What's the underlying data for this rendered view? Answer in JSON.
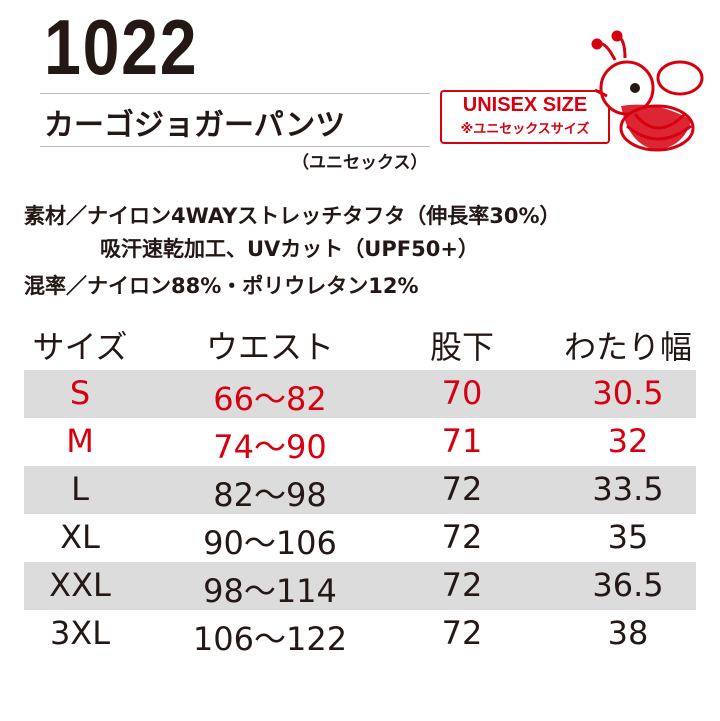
{
  "header": {
    "model": "1022",
    "product_name": "カーゴジョガーパンツ",
    "subtitle": "（ユニセックス）",
    "badge_title": "UNISEX SIZE",
    "badge_note": "※ユニセックスサイズ"
  },
  "material": [
    "素材／ナイロン4WAYストレッチタフタ（伸長率30%）",
    "吸汗速乾加工、UVカット（UPF50+）",
    "混率／ナイロン88%・ポリウレタン12%"
  ],
  "table": {
    "columns": [
      "サイズ",
      "ウエスト",
      "股下",
      "わたり幅"
    ],
    "rows": [
      [
        "S",
        "66〜82",
        "70",
        "30.5"
      ],
      [
        "M",
        "74〜90",
        "71",
        "32"
      ],
      [
        "L",
        "82〜98",
        "72",
        "33.5"
      ],
      [
        "XL",
        "90〜106",
        "72",
        "35"
      ],
      [
        "XXL",
        "98〜114",
        "72",
        "36.5"
      ],
      [
        "3XL",
        "106〜122",
        "72",
        "38"
      ]
    ]
  }
}
